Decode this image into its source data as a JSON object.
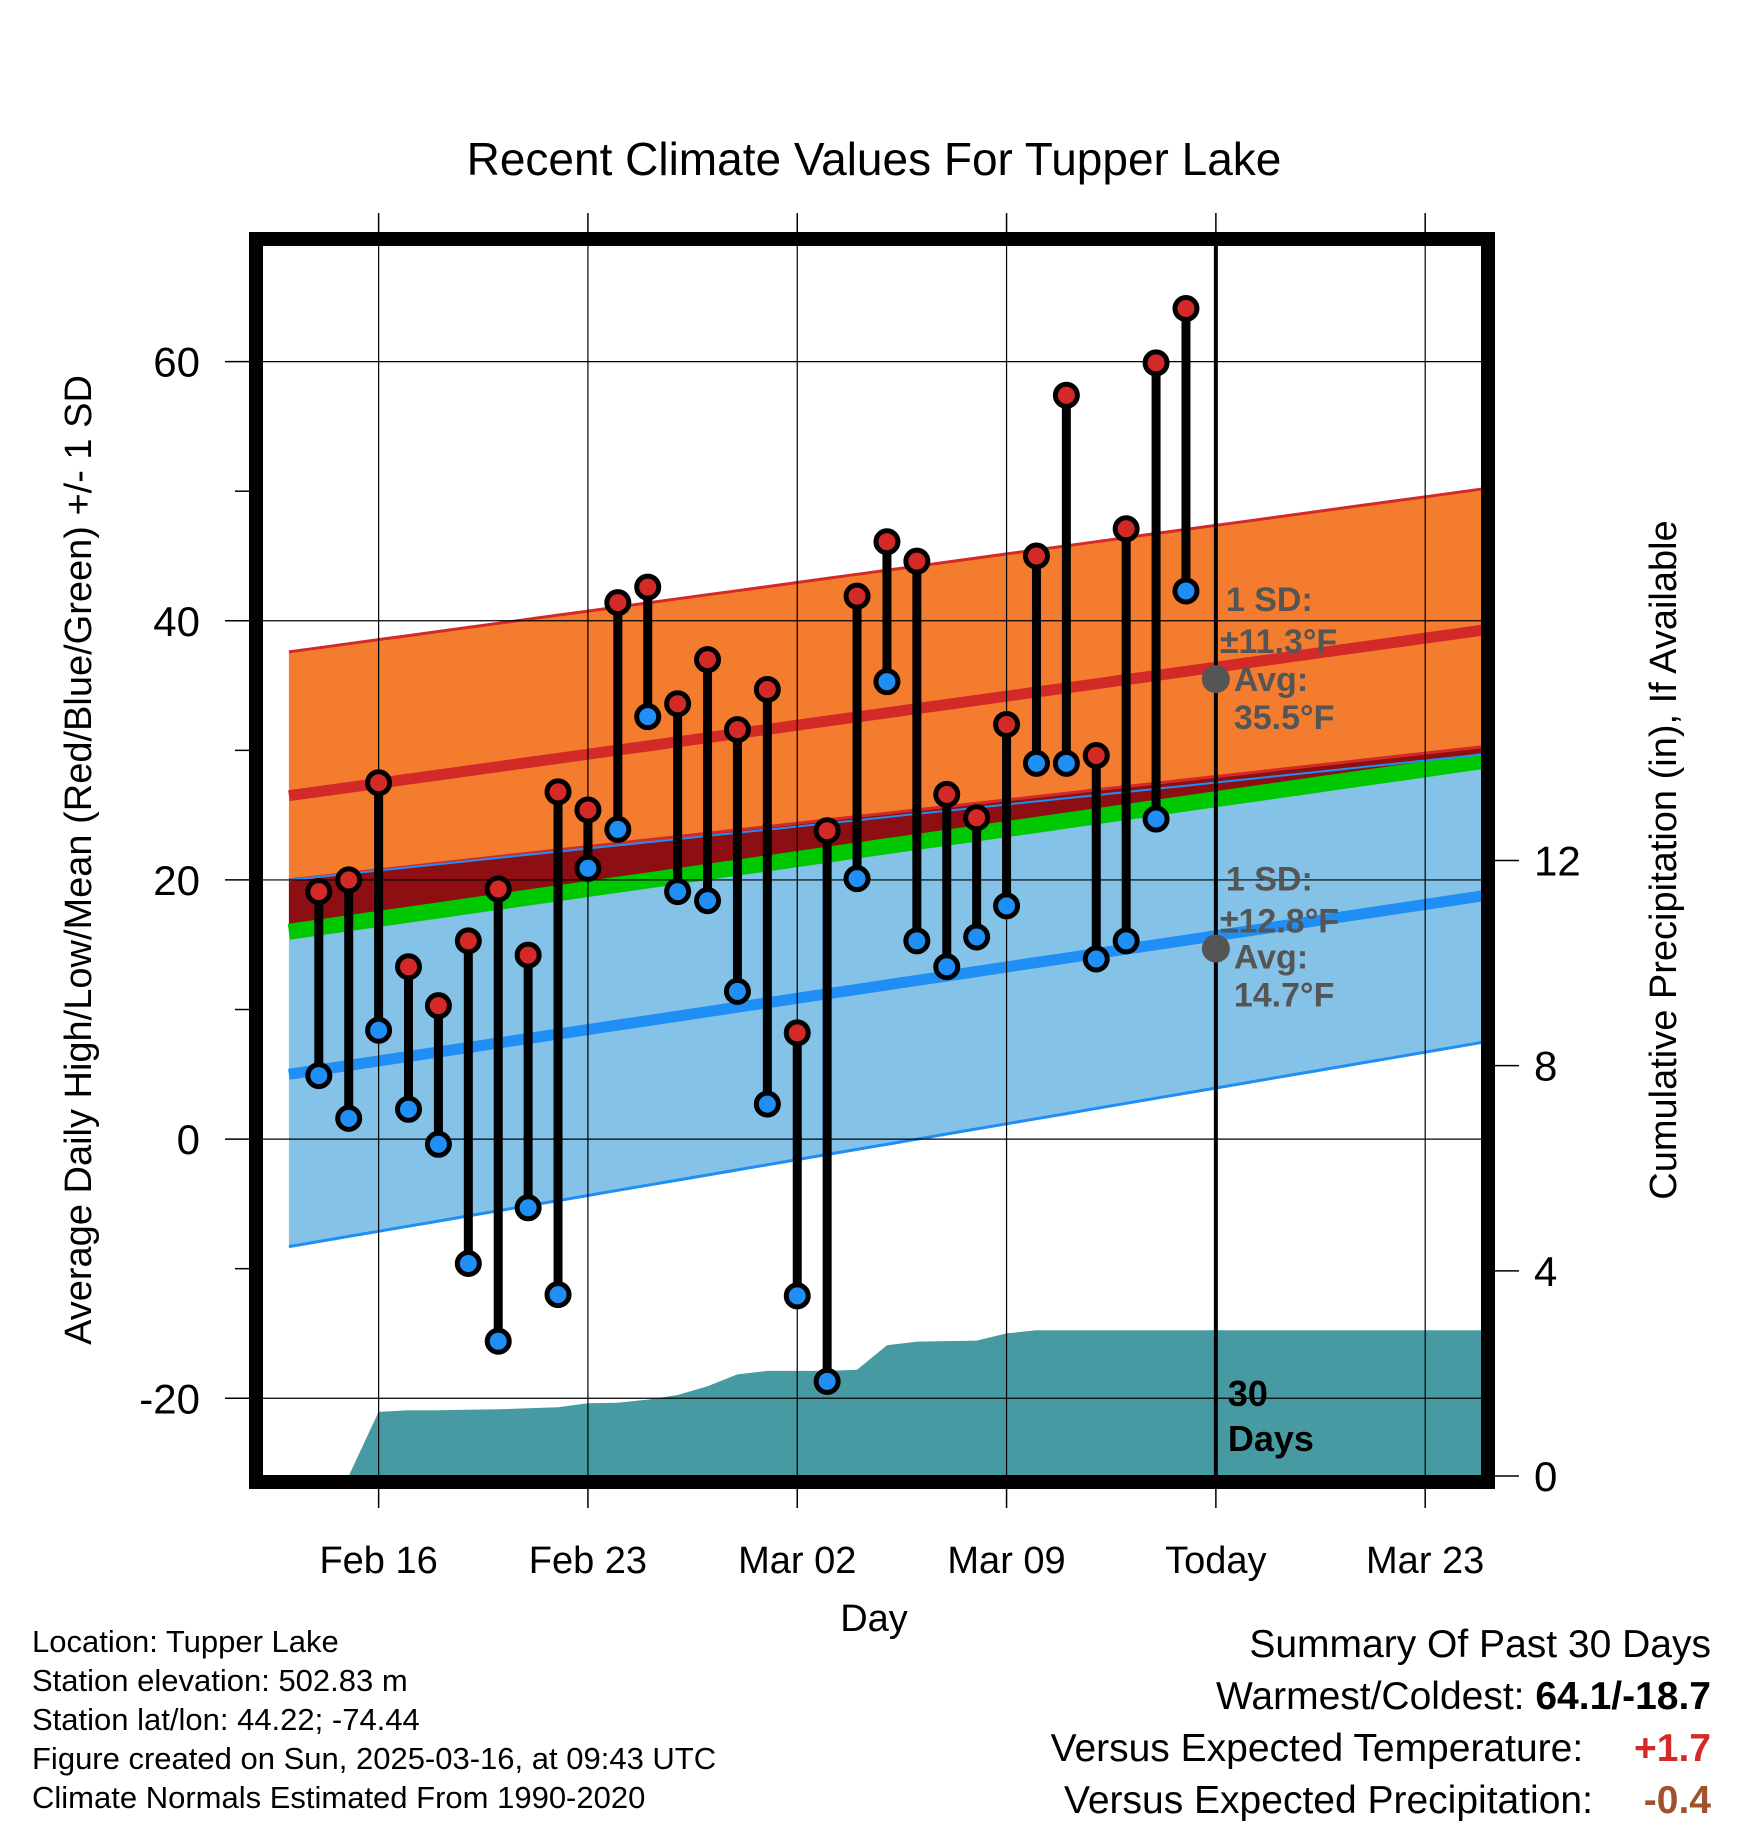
{
  "chart_data": {
    "type": "line",
    "title": "Recent Climate Values For Tupper Lake",
    "xlabel": "Day",
    "ylabel_left": "Average Daily High/Low/Mean (Red/Blue/Green) +/- 1 SD",
    "ylabel_right": "Cumulative Precipitation (in), If Available",
    "x_tick_labels": [
      "Feb 16",
      "Feb 23",
      "Mar 02",
      "Mar 09",
      "Today",
      "Mar 23"
    ],
    "x_tick_days": [
      3,
      10,
      17,
      24,
      31,
      38
    ],
    "xlim": [
      -0.9,
      39.9
    ],
    "ylim_left": [
      -26,
      69
    ],
    "ylim_right": [
      0,
      24
    ],
    "y_ticks_left": [
      -20,
      0,
      20,
      40,
      60
    ],
    "y_ticks_right": [
      0,
      4,
      8,
      12
    ],
    "today_day": 31,
    "today_label": "30\nDays",
    "days": [
      1,
      2,
      3,
      4,
      5,
      6,
      7,
      8,
      9,
      10,
      11,
      12,
      13,
      14,
      15,
      16,
      17,
      18,
      19,
      20,
      21,
      22,
      23,
      24,
      25,
      26,
      27,
      28,
      29,
      30
    ],
    "observed_high": [
      19.1,
      20.0,
      27.5,
      13.3,
      10.3,
      15.3,
      19.3,
      14.2,
      26.8,
      25.4,
      41.4,
      42.6,
      33.6,
      37.0,
      31.6,
      34.7,
      8.2,
      23.8,
      41.9,
      46.1,
      44.6,
      26.6,
      24.8,
      32.0,
      45.0,
      57.4,
      29.6,
      47.1,
      59.9,
      64.1
    ],
    "observed_low": [
      4.9,
      1.6,
      8.4,
      2.3,
      -0.4,
      -9.6,
      -15.6,
      -5.3,
      -12.0,
      20.9,
      23.9,
      32.6,
      19.1,
      18.4,
      11.4,
      2.7,
      -12.1,
      -18.7,
      20.1,
      35.3,
      15.3,
      13.3,
      15.6,
      18.0,
      29.0,
      29.0,
      13.9,
      15.3,
      24.7,
      42.3
    ],
    "normal_day": [
      0,
      40
    ],
    "normal_high_avg": [
      26.5,
      39.3
    ],
    "normal_high_upper": [
      37.6,
      50.2
    ],
    "normal_high_lower": [
      20.0,
      30.3
    ],
    "normal_low_avg": [
      5.0,
      18.8
    ],
    "normal_low_upper": [
      20.0,
      29.7
    ],
    "normal_low_lower": [
      -8.3,
      7.5
    ],
    "normal_mean": [
      16.0,
      29.2
    ],
    "precip_day": [
      1,
      2,
      3,
      4,
      5,
      6,
      7,
      8,
      9,
      10,
      11,
      12,
      13,
      14,
      15,
      16,
      17,
      18,
      19,
      20,
      21,
      22,
      23,
      24,
      25,
      26,
      27,
      28,
      29,
      30,
      31,
      40
    ],
    "precip_cumulative": [
      0,
      0,
      1.25,
      1.28,
      1.28,
      1.29,
      1.3,
      1.32,
      1.34,
      1.42,
      1.43,
      1.49,
      1.58,
      1.75,
      1.98,
      2.05,
      2.05,
      2.05,
      2.07,
      2.55,
      2.62,
      2.63,
      2.64,
      2.78,
      2.84,
      2.84,
      2.84,
      2.84,
      2.84,
      2.84,
      2.84,
      2.84
    ],
    "annotations": {
      "high": {
        "sd_label": "1 SD:",
        "sd_value": "±11.3°F",
        "avg_label": "Avg:",
        "avg_value": "35.5°F",
        "avg": 35.5
      },
      "low": {
        "sd_label": "1 SD:",
        "sd_value": "±12.8°F",
        "avg_label": "Avg:",
        "avg_value": "14.7°F",
        "avg": 14.7
      }
    },
    "colors": {
      "high_band": "#f47c2e",
      "high_line": "#d42a27",
      "low_band": "#85c2e7",
      "low_line": "#1f8ef5",
      "overlap": "#8e0f13",
      "mean": "#00c800",
      "precip": "#479aa1",
      "high_dot": "#d42a27",
      "low_dot": "#1f8ef5",
      "annotation": "#555555"
    }
  },
  "info": {
    "location": "Location: Tupper Lake",
    "elevation": "Station elevation: 502.83 m",
    "latlon": "Station lat/lon: 44.22; -74.44",
    "created": "Figure created on Sun, 2025-03-16, at 09:43 UTC",
    "normals": "Climate Normals Estimated From 1990-2020"
  },
  "summary": {
    "title": "Summary Of Past 30 Days",
    "warmest_label": "Warmest/Coldest:",
    "warmest_value": "64.1/-18.7",
    "temp_label": "Versus Expected Temperature:",
    "temp_value": "+1.7",
    "precip_label": "Versus Expected Precipitation:",
    "precip_value": "-0.4",
    "temp_color": "#d42a27",
    "precip_color": "#a0522d"
  }
}
